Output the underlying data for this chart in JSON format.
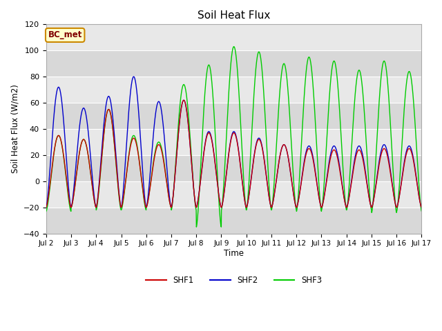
{
  "title": "Soil Heat Flux",
  "ylabel": "Soil Heat Flux (W/m2)",
  "xlabel": "Time",
  "ylim": [
    -40,
    120
  ],
  "xlim": [
    0,
    15
  ],
  "fig_bg": "#ffffff",
  "plot_bg": "#e8e8e8",
  "band_light": "#e8e8e8",
  "band_dark": "#d8d8d8",
  "shf1_color": "#cc0000",
  "shf2_color": "#0000cc",
  "shf3_color": "#00cc00",
  "annotation_text": "BC_met",
  "annotation_bg": "#ffffcc",
  "annotation_border": "#cc8800",
  "xtick_labels": [
    "Jul 2",
    "Jul 3",
    "Jul 4",
    "Jul 5",
    "Jul 6",
    "Jul 7",
    "Jul 8",
    "Jul 9",
    "Jul 10",
    "Jul 11",
    "Jul 12",
    "Jul 13",
    "Jul 14",
    "Jul 15",
    "Jul 16",
    "Jul 17"
  ],
  "ytick_vals": [
    -40,
    -20,
    0,
    20,
    40,
    60,
    80,
    100,
    120
  ],
  "day_peaks_shf2": [
    72,
    56,
    65,
    80,
    61,
    62,
    38,
    38,
    33,
    28,
    27,
    27,
    27,
    28,
    27
  ],
  "day_peaks_shf1": [
    35,
    32,
    55,
    33,
    28,
    62,
    37,
    37,
    32,
    28,
    25,
    24,
    24,
    25,
    25
  ],
  "day_peaks_shf3": [
    35,
    32,
    55,
    35,
    30,
    74,
    89,
    103,
    99,
    90,
    95,
    92,
    85,
    92,
    84
  ],
  "day_troughs_shf1": [
    -20,
    -20,
    -20,
    -20,
    -20,
    -20,
    -20,
    -20,
    -20,
    -20,
    -20,
    -20,
    -20,
    -20,
    -20
  ],
  "day_troughs_shf2": [
    -20,
    -20,
    -20,
    -20,
    -20,
    -20,
    -20,
    -20,
    -20,
    -20,
    -20,
    -20,
    -20,
    -20,
    -20
  ],
  "day_troughs_shf3": [
    -23,
    -20,
    -22,
    -22,
    -20,
    -22,
    -35,
    -22,
    -22,
    -22,
    -23,
    -22,
    -22,
    -24,
    -23
  ]
}
